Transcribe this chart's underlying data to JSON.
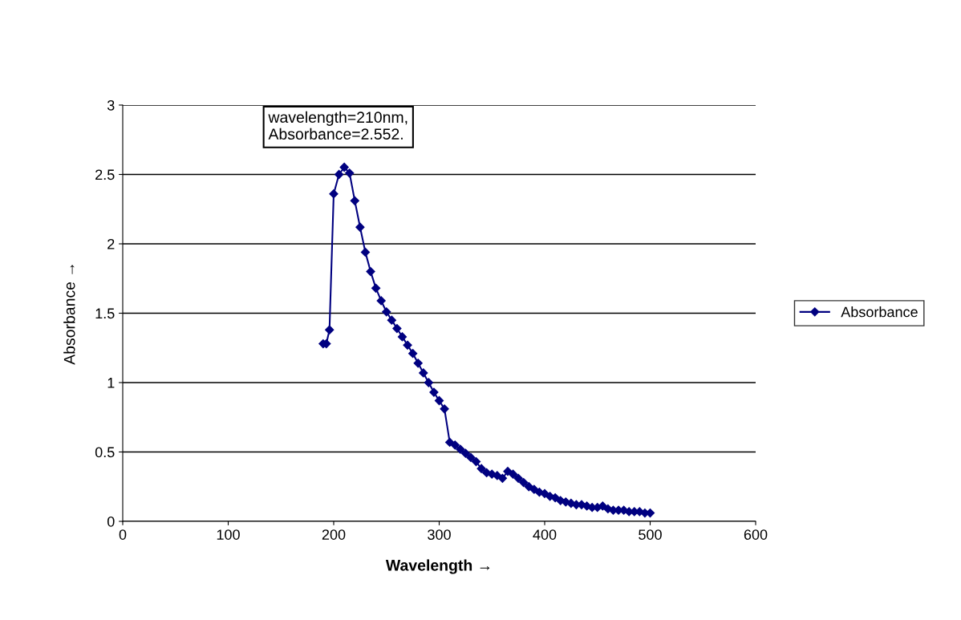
{
  "chart_data": {
    "type": "line",
    "xlabel": "Wavelength →",
    "ylabel": "Absorbance →",
    "annotations": [
      "wavelength=210nm,\nAbsorbance=2.552."
    ],
    "x": [
      190,
      193,
      196,
      200,
      205,
      210,
      215,
      220,
      225,
      230,
      235,
      240,
      245,
      250,
      255,
      260,
      265,
      270,
      275,
      280,
      285,
      290,
      295,
      300,
      305,
      310,
      315,
      320,
      325,
      330,
      335,
      340,
      345,
      350,
      355,
      360,
      365,
      370,
      375,
      380,
      385,
      390,
      395,
      400,
      405,
      410,
      415,
      420,
      425,
      430,
      435,
      440,
      445,
      450,
      455,
      460,
      465,
      470,
      475,
      480,
      485,
      490,
      495,
      500
    ],
    "series": [
      {
        "name": "Absorbance",
        "color": "#000080",
        "values": [
          1.28,
          1.28,
          1.38,
          2.36,
          2.5,
          2.552,
          2.51,
          2.31,
          2.12,
          1.94,
          1.8,
          1.68,
          1.59,
          1.51,
          1.45,
          1.39,
          1.33,
          1.27,
          1.21,
          1.14,
          1.07,
          1.0,
          0.93,
          0.87,
          0.81,
          0.57,
          0.55,
          0.52,
          0.49,
          0.46,
          0.43,
          0.38,
          0.35,
          0.34,
          0.33,
          0.31,
          0.36,
          0.34,
          0.31,
          0.28,
          0.25,
          0.23,
          0.21,
          0.2,
          0.18,
          0.17,
          0.15,
          0.14,
          0.13,
          0.12,
          0.12,
          0.11,
          0.1,
          0.1,
          0.11,
          0.09,
          0.08,
          0.08,
          0.08,
          0.07,
          0.07,
          0.07,
          0.06,
          0.06
        ]
      }
    ],
    "xlim": [
      0,
      600
    ],
    "xticks": [
      0,
      100,
      200,
      300,
      400,
      500,
      600
    ],
    "ylim": [
      0,
      3
    ],
    "yticks": [
      0,
      0.5,
      1,
      1.5,
      2,
      2.5,
      3
    ],
    "grid": "y",
    "legend": "right",
    "marker": "diamond",
    "line_style": "solid"
  }
}
